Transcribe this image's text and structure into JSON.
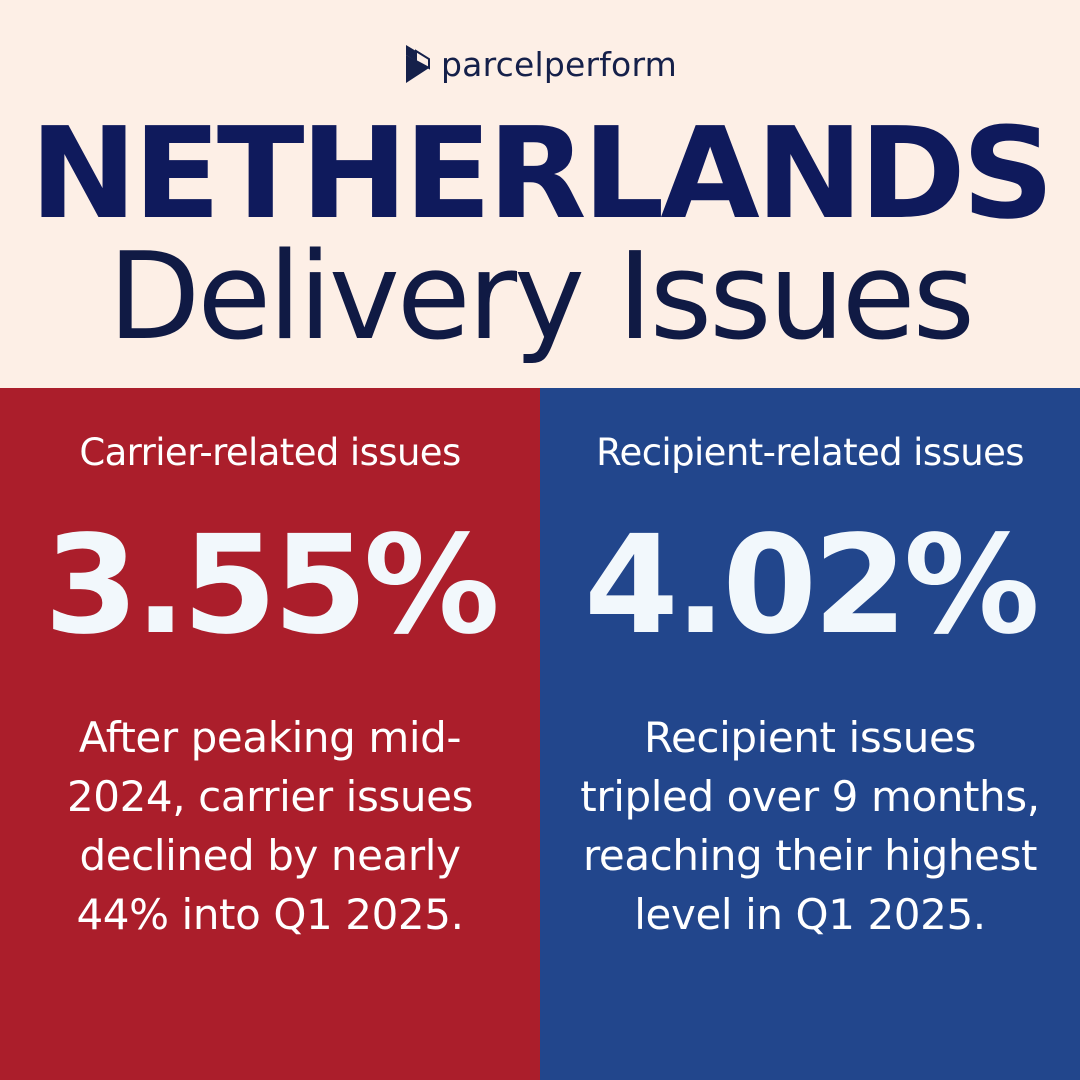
{
  "brand": {
    "logo_text": "parcelperform",
    "logo_icon": "parcelperform-mark-icon"
  },
  "header": {
    "title_line1": "NETHERLANDS",
    "title_line2": "Delivery Issues"
  },
  "panels": [
    {
      "label": "Carrier-related issues",
      "value": "3.55%",
      "description": "After peaking mid-2024, carrier issues declined by nearly 44% into Q1 2025.",
      "background_color": "#ab1e2b"
    },
    {
      "label": "Recipient-related issues",
      "value": "4.02%",
      "description": "Recipient issues tripled over 9 months, reaching their highest level in Q1 2025.",
      "background_color": "#22468c"
    }
  ],
  "colors": {
    "page_background": "#fdefe6",
    "title_navy": "#0f1a5c",
    "text_white": "#ffffff"
  }
}
